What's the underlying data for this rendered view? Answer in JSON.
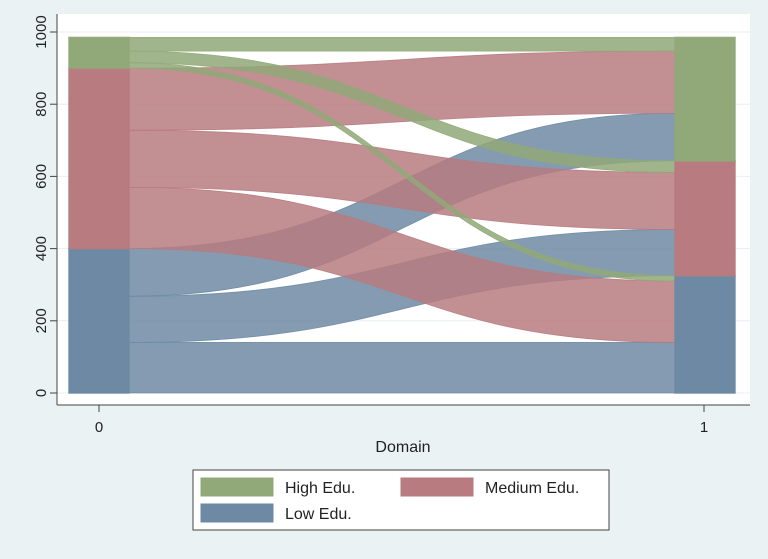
{
  "chart_data": {
    "type": "sankey",
    "title": "",
    "xlabel": "Domain",
    "ylabel": "",
    "x_ticks": [
      "0",
      "1"
    ],
    "y_ticks": [
      0,
      200,
      400,
      600,
      800,
      1000
    ],
    "ylim": [
      0,
      1000
    ],
    "grid": true,
    "legend_placement": "bottom",
    "categories": [
      "Low Edu.",
      "Medium Edu.",
      "High Edu."
    ],
    "legend": [
      {
        "label": "High Edu.",
        "color": "#91a878"
      },
      {
        "label": "Medium Edu.",
        "color": "#b77b80"
      },
      {
        "label": "Low Edu.",
        "color": "#6e89a4"
      }
    ],
    "flows": [
      {
        "from": "Low Edu.",
        "to": "Low Edu.",
        "value": 140
      },
      {
        "from": "Low Edu.",
        "to": "Medium Edu.",
        "value": 128
      },
      {
        "from": "Low Edu.",
        "to": "High Edu.",
        "value": 132
      },
      {
        "from": "Medium Edu.",
        "to": "Low Edu.",
        "value": 170
      },
      {
        "from": "Medium Edu.",
        "to": "Medium Edu.",
        "value": 158
      },
      {
        "from": "Medium Edu.",
        "to": "High Edu.",
        "value": 172
      },
      {
        "from": "High Edu.",
        "to": "Low Edu.",
        "value": 15
      },
      {
        "from": "High Edu.",
        "to": "Medium Edu.",
        "value": 32
      },
      {
        "from": "High Edu.",
        "to": "High Edu.",
        "value": 38
      }
    ]
  }
}
